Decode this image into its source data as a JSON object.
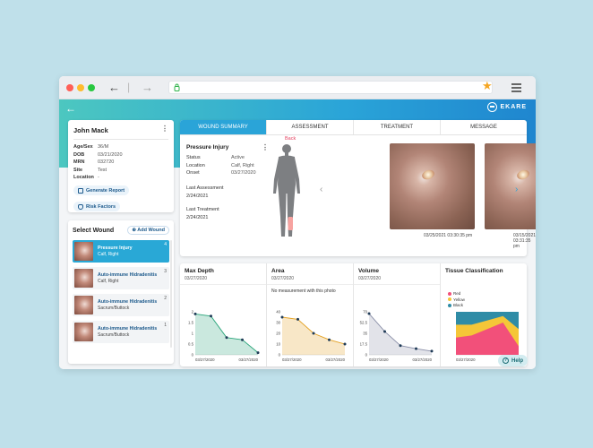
{
  "patient": {
    "name": "John Mack",
    "fields": [
      {
        "label": "Age/Sex",
        "value": "36/M"
      },
      {
        "label": "DOB",
        "value": "03/21/2020"
      },
      {
        "label": "MRN",
        "value": "032720"
      },
      {
        "label": "Site",
        "value": "Test"
      },
      {
        "label": "Location",
        "value": "-"
      }
    ],
    "generate_report": "Generate Report",
    "risk_factors": "Risk Factors"
  },
  "wound_list": {
    "title": "Select Wound",
    "add_label": "Add Wound",
    "items": [
      {
        "name": "Pressure Injury",
        "location": "Calf, Right",
        "number": "4"
      },
      {
        "name": "Auto-immune Hidradenitis",
        "location": "Calf, Right",
        "number": "3"
      },
      {
        "name": "Auto-immune Hidradenitis",
        "location": "Sacrum/Buttock",
        "number": "2"
      },
      {
        "name": "Auto-immune Hidradenitis",
        "location": "Sacrum/Buttock",
        "number": "1"
      }
    ]
  },
  "tabs": [
    "WOUND SUMMARY",
    "ASSESSMENT",
    "TREATMENT",
    "MESSAGE"
  ],
  "wound": {
    "title": "Pressure Injury",
    "fields": [
      {
        "label": "Status",
        "value": "Active"
      },
      {
        "label": "Location",
        "value": "Calf, Right"
      },
      {
        "label": "Onset",
        "value": "03/27/2020"
      }
    ],
    "last_assessment_label": "Last Assessment",
    "last_assessment": "2/24/2021",
    "last_treatment_label": "Last Treatment",
    "last_treatment": "2/24/2021",
    "body_view_label": "Back"
  },
  "photos": [
    {
      "timestamp": "03/25/2021 03:30:35 pm"
    },
    {
      "timestamp": "03/15/2021 03:31:35 pm"
    }
  ],
  "metrics": {
    "max_depth": {
      "title": "Max Depth",
      "date": "03/27/2020"
    },
    "area": {
      "title": "Area",
      "date": "03/27/2020",
      "note": "No measurement with this photo"
    },
    "volume": {
      "title": "Volume",
      "date": "03/27/2020"
    },
    "tissue": {
      "title": "Tissue Classification",
      "legend": [
        "Red",
        "Yellow",
        "Black"
      ]
    }
  },
  "chart_data": [
    {
      "type": "area",
      "title": "Max Depth",
      "x": [
        "03/27/2020",
        "",
        "",
        "",
        "03/27/2020"
      ],
      "yticks": [
        "2",
        "1.5",
        "1",
        "0.5",
        "0"
      ],
      "values": [
        1.9,
        1.8,
        0.8,
        0.7,
        0.1
      ],
      "ylim": [
        0,
        2
      ],
      "color": "#2aa57a"
    },
    {
      "type": "area",
      "title": "Area",
      "x": [
        "03/27/2020",
        "",
        "",
        "",
        "03/27/2020"
      ],
      "yticks": [
        "40",
        "30",
        "20",
        "10",
        "0"
      ],
      "values": [
        35,
        33,
        20,
        14,
        10
      ],
      "ylim": [
        0,
        40
      ],
      "color": "#e3a020"
    },
    {
      "type": "area",
      "title": "Volume",
      "x": [
        "03/27/2020",
        "",
        "",
        "",
        "03/27/2020"
      ],
      "yticks": [
        "70",
        "52.5",
        "35",
        "17.5",
        "0"
      ],
      "values": [
        67,
        38,
        15,
        10,
        6
      ],
      "ylim": [
        0,
        70
      ],
      "color": "#8a8fa8"
    },
    {
      "type": "area",
      "title": "Tissue Classification",
      "x": [
        "03/27/2020",
        "",
        "",
        "",
        "03/27/2020"
      ],
      "series": [
        {
          "name": "Red",
          "values": [
            40,
            45,
            60,
            75,
            20
          ],
          "color": "#f2507a"
        },
        {
          "name": "Yellow",
          "values": [
            30,
            25,
            20,
            15,
            40
          ],
          "color": "#f5c638"
        },
        {
          "name": "Black",
          "values": [
            30,
            30,
            20,
            10,
            40
          ],
          "color": "#2f8ca6"
        }
      ],
      "ylim": [
        0,
        100
      ]
    }
  ],
  "help_label": "Help",
  "colors": {
    "accent": "#2aa4d8",
    "teal": "#4cc7c0"
  }
}
